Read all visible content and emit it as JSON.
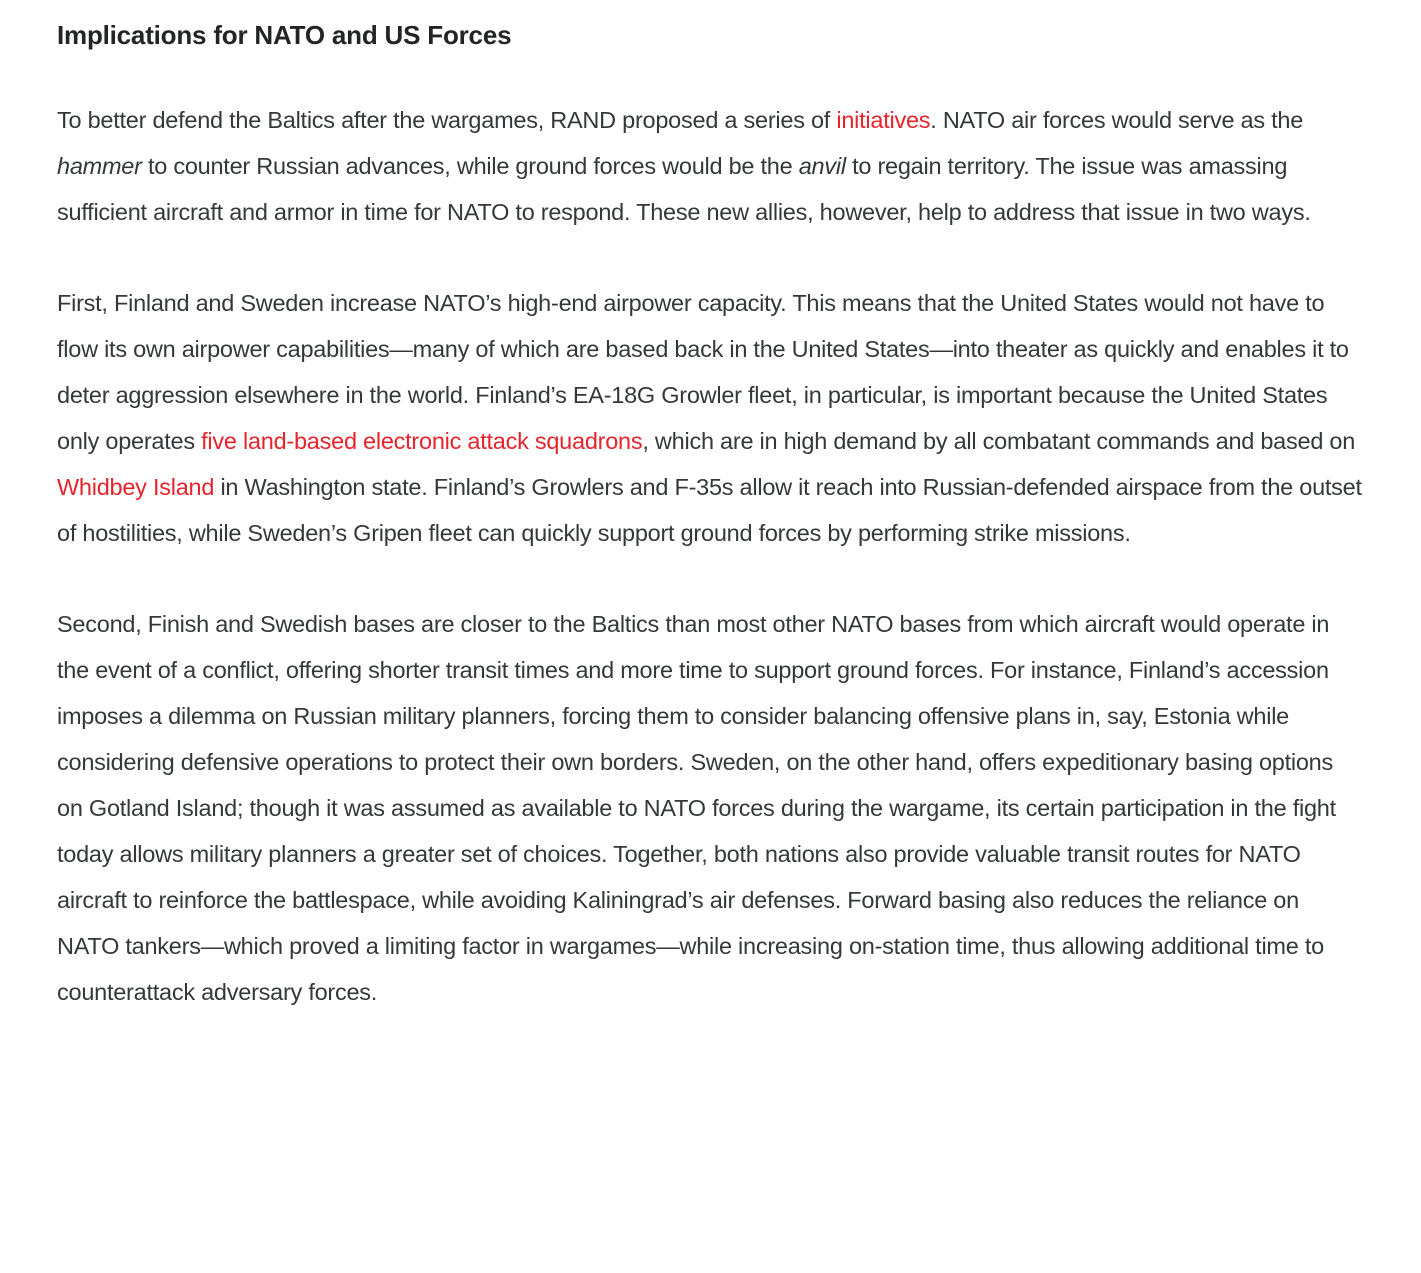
{
  "page": {
    "background_color": "#ffffff",
    "text_color": "#35383b",
    "heading_color": "#222426",
    "link_color": "#e7242b"
  },
  "article": {
    "heading": "Implications for NATO and US Forces",
    "paragraphs": [
      {
        "segments": [
          {
            "text": "To better defend the Baltics after the wargames, RAND proposed a series of "
          },
          {
            "text": "initiatives",
            "type": "link"
          },
          {
            "text": ". NATO air forces would serve as the "
          },
          {
            "text": "hammer",
            "type": "italic"
          },
          {
            "text": " to counter Russian advances, while ground forces would be the "
          },
          {
            "text": "anvil",
            "type": "italic"
          },
          {
            "text": " to regain territory. The issue was amassing sufficient aircraft and armor in time for NATO to respond. These new allies, however, help to address that issue in two ways."
          }
        ]
      },
      {
        "segments": [
          {
            "text": "First, Finland and Sweden increase NATO’s high-end airpower capacity. This means that the United States would not have to flow its own airpower capabilities—many of which are based back in the United States—into theater as quickly and enables it to deter aggression elsewhere in the world. Finland’s EA-18G Growler fleet, in particular, is important because the United States only operates "
          },
          {
            "text": "five land-based electronic attack squadrons",
            "type": "link"
          },
          {
            "text": ", which are in high demand by all combatant commands and based on "
          },
          {
            "text": "Whidbey Island",
            "type": "link"
          },
          {
            "text": " in Washington state. Finland’s Growlers and F-35s allow it reach into Russian-defended airspace from the outset of hostilities, while Sweden’s Gripen fleet can quickly support ground forces by performing strike missions."
          }
        ]
      },
      {
        "segments": [
          {
            "text": "Second, Finish and Swedish bases are closer to the Baltics than most other NATO bases from which aircraft would operate in the event of a conflict, offering shorter transit times and more time to support ground forces. For instance, Finland’s accession imposes a dilemma on Russian military planners, forcing them to consider balancing offensive plans in, say, Estonia while considering defensive operations to protect their own borders. Sweden, on the other hand, offers expeditionary basing options on Gotland Island; though it was assumed as available to NATO forces during the wargame, its certain participation in the fight today allows military planners a greater set of choices. Together, both nations also provide valuable transit routes for NATO aircraft to reinforce the battlespace, while avoiding Kaliningrad’s air defenses. Forward basing also reduces the reliance on NATO tankers—which proved a limiting factor in wargames—while increasing on-station time, thus allowing additional time to counterattack adversary forces."
          }
        ]
      }
    ]
  }
}
